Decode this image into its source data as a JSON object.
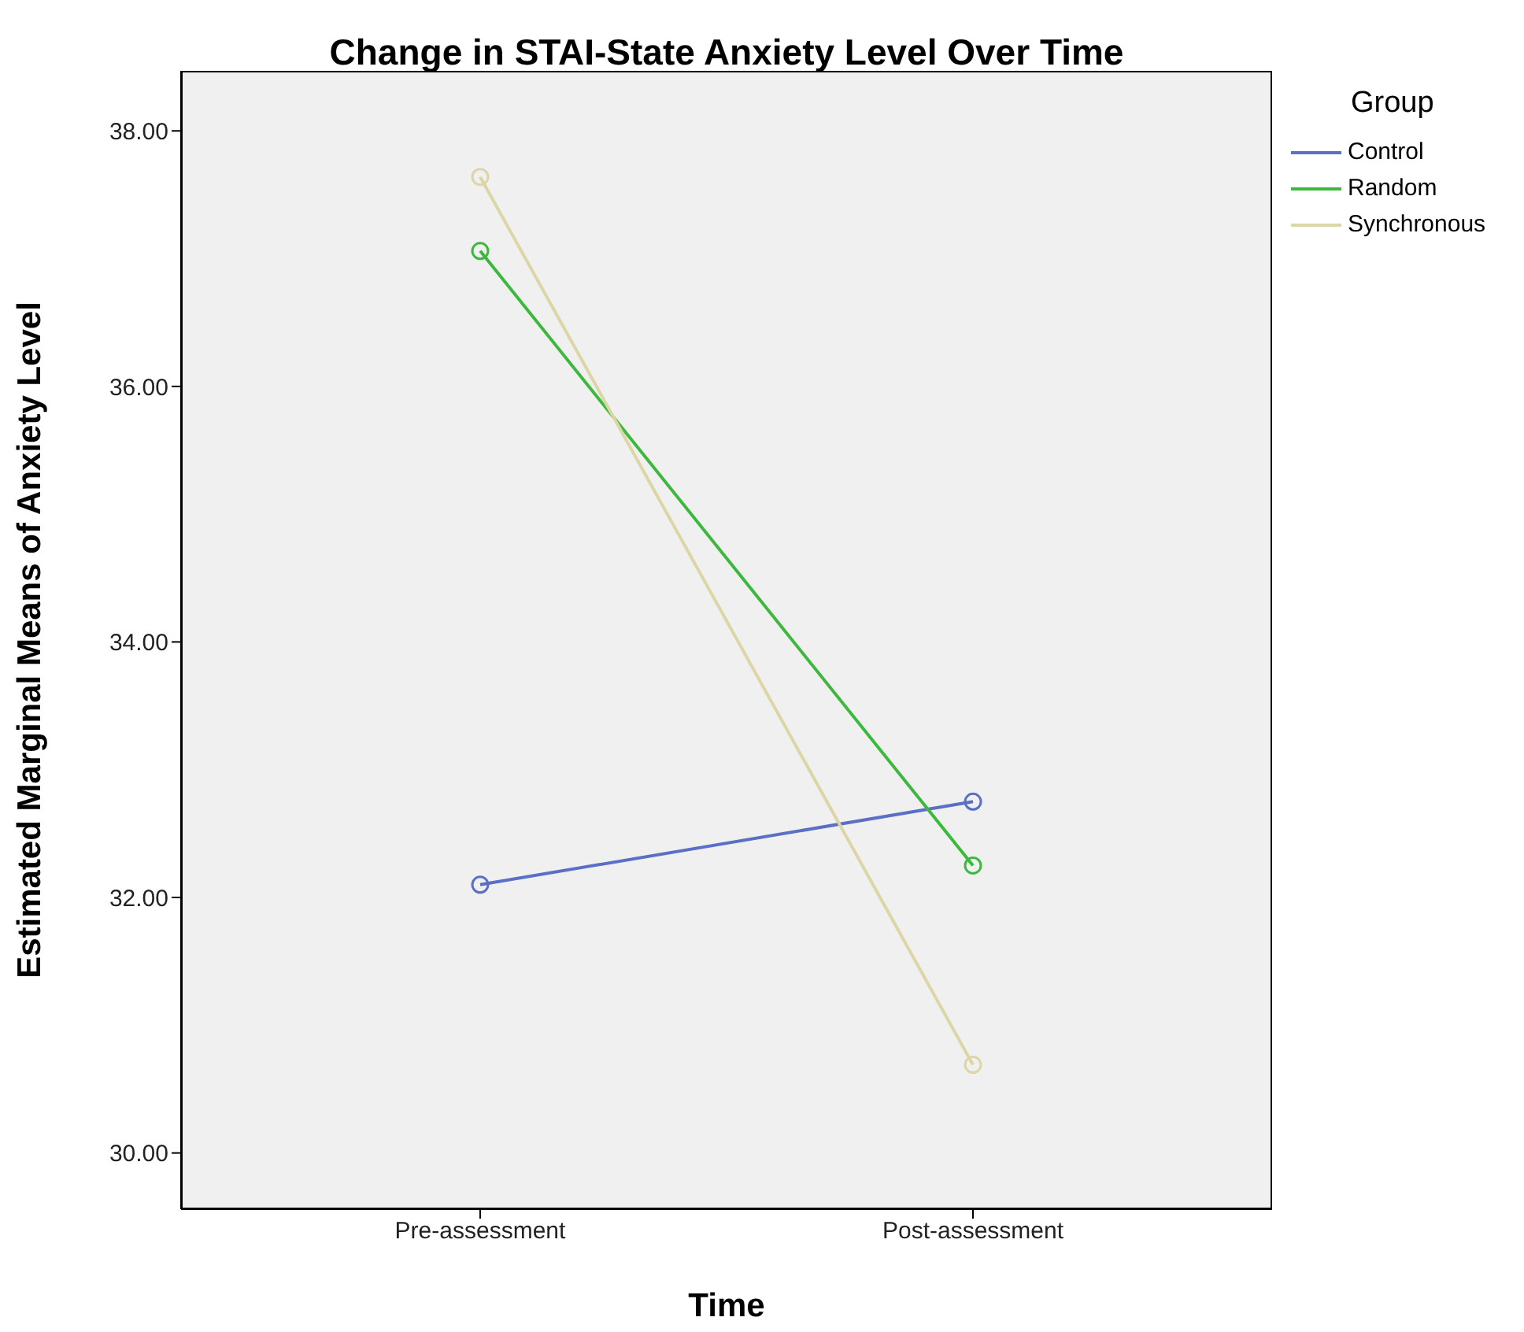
{
  "chart_data": {
    "type": "line",
    "title": "Change in STAI-State Anxiety Level Over Time",
    "xlabel": "Time",
    "ylabel": "Estimated Marginal Means of Anxiety Level",
    "legend_title": "Group",
    "categories": [
      "Pre-assessment",
      "Post-assessment"
    ],
    "series": [
      {
        "name": "Control",
        "color": "#5a6fc6",
        "values": [
          32.1,
          32.75
        ]
      },
      {
        "name": "Random",
        "color": "#3cb93c",
        "values": [
          37.06,
          32.25
        ]
      },
      {
        "name": "Synchronous",
        "color": "#dcd6a6",
        "values": [
          37.64,
          30.69
        ]
      }
    ],
    "ylim": [
      29.56,
      38.47
    ],
    "yticks": [
      {
        "value": 30,
        "label": "30.00"
      },
      {
        "value": 32,
        "label": "32.00"
      },
      {
        "value": 34,
        "label": "34.00"
      },
      {
        "value": 36,
        "label": "36.00"
      },
      {
        "value": 38,
        "label": "38.00"
      }
    ],
    "marker": "circle",
    "line_style": "solid",
    "legend": "top right"
  }
}
